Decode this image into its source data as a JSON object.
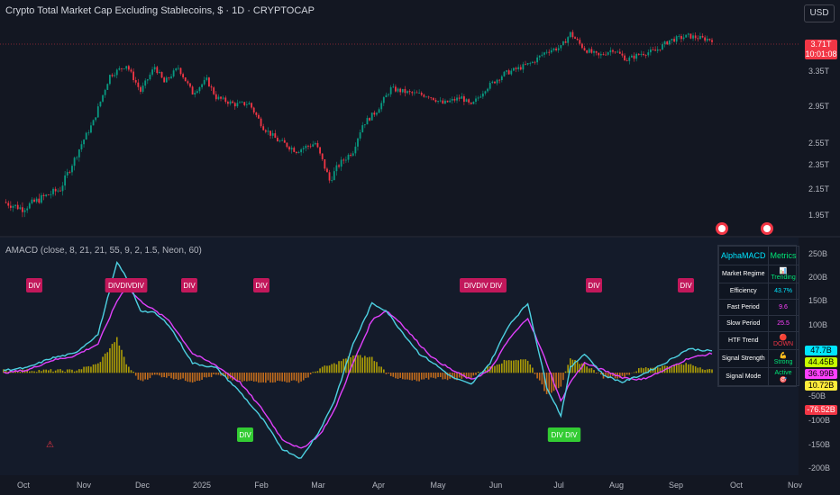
{
  "header": {
    "title": "Crypto Total Market Cap Excluding Stablecoins, $ · 1D · CRYPTOCAP",
    "currency_button": "USD",
    "last_price": "3.71T",
    "countdown": "10:01:08"
  },
  "indicator": {
    "title": "AMACD (close, 8, 21, 21, 55, 9, 2, 1.5, Neon, 60)"
  },
  "metrics_table": {
    "header_left": "AlphaMACD",
    "header_right": "Metrics",
    "rows": [
      {
        "key": "Market Regime",
        "value": "📊 Trending",
        "color": "#00e676"
      },
      {
        "key": "Efficiency",
        "value": "43.7%",
        "color": "#00e5ff"
      },
      {
        "key": "Fast Period",
        "value": "9.6",
        "color": "#ff40ff"
      },
      {
        "key": "Slow Period",
        "value": "25.5",
        "color": "#ff40ff"
      },
      {
        "key": "HTF Trend",
        "value": "🔴 DOWN",
        "color": "#f23645"
      },
      {
        "key": "Signal Strength",
        "value": "💪 Strong",
        "color": "#00e676"
      },
      {
        "key": "Signal Mode",
        "value": "Active 🎯",
        "color": "#00e676"
      }
    ]
  },
  "value_tags": [
    {
      "label": "47.7B",
      "color": "#00e5ff",
      "top": 384
    },
    {
      "label": "44.45B",
      "color": "#c6ff00",
      "top": 397
    },
    {
      "label": "36.99B",
      "color": "#ff40ff",
      "top": 410
    },
    {
      "label": "10.72B",
      "color": "#ffeb3b",
      "top": 423
    },
    {
      "label": "-76.52B",
      "color": "#f23645",
      "top": 450
    }
  ],
  "chart_data": [
    {
      "type": "candlestick",
      "y_axis_ticks": [
        "3.35T",
        "2.95T",
        "2.55T",
        "2.35T",
        "2.15T",
        "1.95T"
      ],
      "x_axis_ticks": [
        "Oct",
        "Nov",
        "Dec",
        "2025",
        "Feb",
        "Mar",
        "Apr",
        "May",
        "Jun",
        "Jul",
        "Aug",
        "Sep",
        "Oct",
        "Nov"
      ],
      "close_series": {
        "x_index": [
          0,
          8,
          16,
          24,
          30,
          38,
          45,
          52,
          58,
          64,
          68,
          74,
          80,
          86,
          90,
          98,
          104,
          110,
          116,
          124,
          132,
          138,
          142,
          148,
          152,
          158,
          164,
          172,
          180,
          186,
          194,
          198,
          204,
          212,
          218,
          224,
          230,
          236,
          240,
          246,
          252,
          258,
          264,
          270,
          276,
          282,
          290,
          296,
          300
        ],
        "values_T": [
          2.05,
          2.0,
          2.08,
          2.15,
          2.4,
          2.78,
          3.3,
          3.42,
          3.12,
          3.4,
          3.22,
          3.39,
          3.1,
          3.25,
          3.05,
          2.97,
          2.98,
          2.72,
          2.58,
          2.48,
          2.55,
          2.22,
          2.35,
          2.48,
          2.75,
          2.9,
          3.15,
          3.1,
          3.07,
          2.98,
          3.05,
          2.95,
          3.15,
          3.32,
          3.38,
          3.45,
          3.58,
          3.62,
          3.78,
          3.6,
          3.52,
          3.6,
          3.48,
          3.55,
          3.58,
          3.7,
          3.75,
          3.72,
          3.71
        ]
      }
    },
    {
      "type": "line",
      "name": "AMACD",
      "y_axis_ticks": [
        "250B",
        "200B",
        "150B",
        "100B",
        "-50B",
        "-100B",
        "-150B",
        "-200B"
      ],
      "div_labels": [
        "DIV",
        "DIVDIVDIV",
        "DIV",
        "DIV",
        "DIVDIV DIV",
        "DIV",
        "DIV",
        "DIV",
        "DIV DIV"
      ],
      "x_index": [
        0,
        10,
        20,
        30,
        40,
        48,
        52,
        58,
        64,
        70,
        80,
        90,
        100,
        110,
        118,
        126,
        134,
        140,
        148,
        156,
        162,
        168,
        176,
        182,
        190,
        198,
        206,
        214,
        222,
        230,
        236,
        240,
        246,
        254,
        262,
        270,
        280,
        290,
        300
      ],
      "macd_B": [
        5,
        10,
        30,
        40,
        80,
        230,
        200,
        130,
        125,
        100,
        20,
        10,
        -40,
        -100,
        -160,
        -180,
        -120,
        -60,
        60,
        145,
        130,
        90,
        40,
        20,
        -10,
        -25,
        20,
        100,
        145,
        -30,
        -90,
        10,
        40,
        -5,
        -20,
        -5,
        20,
        50,
        45
      ],
      "signal_B": [
        0,
        5,
        25,
        35,
        60,
        150,
        180,
        150,
        130,
        110,
        40,
        15,
        -20,
        -80,
        -140,
        -160,
        -130,
        -80,
        20,
        110,
        130,
        105,
        60,
        30,
        5,
        -15,
        5,
        70,
        115,
        20,
        -60,
        -20,
        20,
        5,
        -10,
        -15,
        5,
        30,
        40
      ]
    }
  ]
}
